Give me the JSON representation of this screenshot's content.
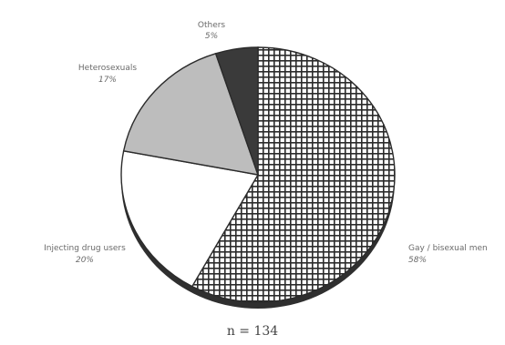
{
  "chart_data": {
    "type": "pie",
    "title": "",
    "categories": [
      "Gay / bisexual men",
      "Injecting drug users",
      "Heterosexuals",
      "Others"
    ],
    "labels": [
      "Gay / bisexual men",
      "Injecting drug users",
      "Heterosexuals",
      "Others"
    ],
    "percent_labels": [
      "58%",
      "20%",
      "17%",
      "5%"
    ],
    "values": [
      58,
      20,
      17,
      5
    ],
    "colors": {
      "Gay / bisexual men": "#ffffff",
      "Injecting drug users": "#ffffff",
      "Heterosexuals": "#bdbdbd",
      "Others": "#3a3a3a"
    },
    "patterns": {
      "Gay / bisexual men": "crosshatch-grid",
      "Injecting drug users": "solid",
      "Heterosexuals": "solid",
      "Others": "solid"
    },
    "legend": "none",
    "note": "n = 134"
  }
}
